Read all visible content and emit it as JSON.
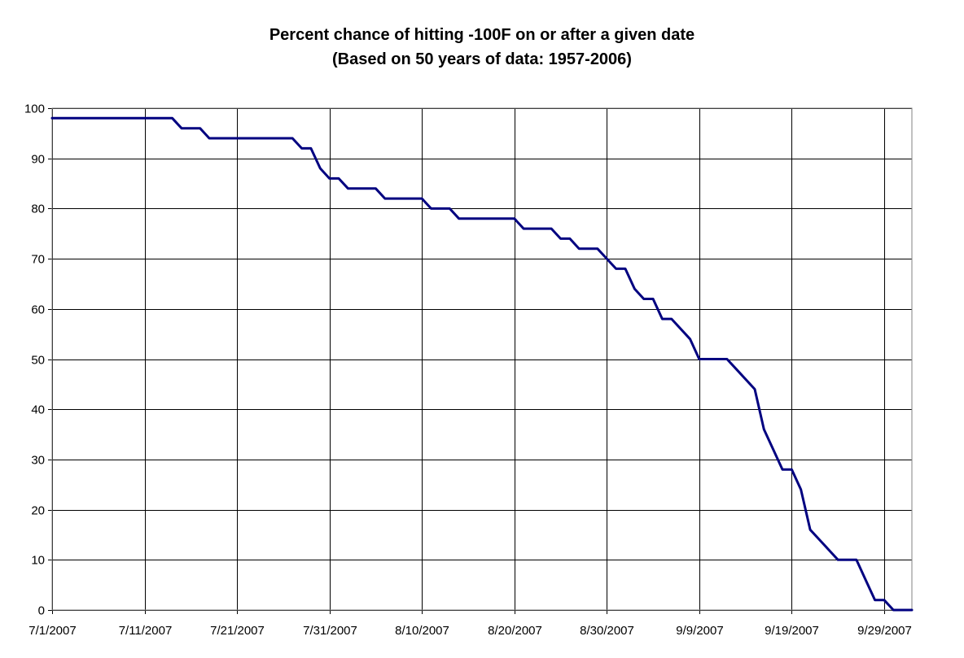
{
  "chart_data": {
    "type": "line",
    "title": "Percent chance of hitting -100F on or after a given date",
    "subtitle": "(Based on 50 years of data: 1957-2006)",
    "xlabel": "",
    "ylabel": "",
    "ylim": [
      0,
      100
    ],
    "yticks": [
      0,
      10,
      20,
      30,
      40,
      50,
      60,
      70,
      80,
      90,
      100
    ],
    "xlim": [
      "2007-07-01",
      "2007-10-02"
    ],
    "xticks": [
      {
        "date": "2007-07-01",
        "label": "7/1/2007"
      },
      {
        "date": "2007-07-11",
        "label": "7/11/2007"
      },
      {
        "date": "2007-07-21",
        "label": "7/21/2007"
      },
      {
        "date": "2007-07-31",
        "label": "7/31/2007"
      },
      {
        "date": "2007-08-10",
        "label": "8/10/2007"
      },
      {
        "date": "2007-08-20",
        "label": "8/20/2007"
      },
      {
        "date": "2007-08-30",
        "label": "8/30/2007"
      },
      {
        "date": "2007-09-09",
        "label": "9/9/2007"
      },
      {
        "date": "2007-09-19",
        "label": "9/19/2007"
      },
      {
        "date": "2007-09-29",
        "label": "9/29/2007"
      }
    ],
    "grid": true,
    "legend": "none",
    "line_color": "#000080",
    "series": [
      {
        "points": [
          [
            "2007-07-01",
            98
          ],
          [
            "2007-07-14",
            98
          ],
          [
            "2007-07-15",
            96
          ],
          [
            "2007-07-17",
            96
          ],
          [
            "2007-07-18",
            94
          ],
          [
            "2007-07-27",
            94
          ],
          [
            "2007-07-28",
            92
          ],
          [
            "2007-07-29",
            92
          ],
          [
            "2007-07-30",
            88
          ],
          [
            "2007-07-31",
            86
          ],
          [
            "2007-08-01",
            86
          ],
          [
            "2007-08-02",
            84
          ],
          [
            "2007-08-05",
            84
          ],
          [
            "2007-08-06",
            82
          ],
          [
            "2007-08-10",
            82
          ],
          [
            "2007-08-11",
            80
          ],
          [
            "2007-08-13",
            80
          ],
          [
            "2007-08-14",
            78
          ],
          [
            "2007-08-20",
            78
          ],
          [
            "2007-08-21",
            76
          ],
          [
            "2007-08-24",
            76
          ],
          [
            "2007-08-25",
            74
          ],
          [
            "2007-08-26",
            74
          ],
          [
            "2007-08-27",
            72
          ],
          [
            "2007-08-29",
            72
          ],
          [
            "2007-08-30",
            70
          ],
          [
            "2007-08-31",
            68
          ],
          [
            "2007-09-01",
            68
          ],
          [
            "2007-09-02",
            64
          ],
          [
            "2007-09-03",
            62
          ],
          [
            "2007-09-04",
            62
          ],
          [
            "2007-09-05",
            58
          ],
          [
            "2007-09-06",
            58
          ],
          [
            "2007-09-08",
            54
          ],
          [
            "2007-09-09",
            50
          ],
          [
            "2007-09-12",
            50
          ],
          [
            "2007-09-13",
            48
          ],
          [
            "2007-09-15",
            44
          ],
          [
            "2007-09-16",
            36
          ],
          [
            "2007-09-17",
            32
          ],
          [
            "2007-09-18",
            28
          ],
          [
            "2007-09-19",
            28
          ],
          [
            "2007-09-20",
            24
          ],
          [
            "2007-09-21",
            16
          ],
          [
            "2007-09-22",
            14
          ],
          [
            "2007-09-24",
            10
          ],
          [
            "2007-09-26",
            10
          ],
          [
            "2007-09-27",
            6
          ],
          [
            "2007-09-28",
            2
          ],
          [
            "2007-09-29",
            2
          ],
          [
            "2007-09-30",
            0
          ],
          [
            "2007-10-02",
            0
          ]
        ]
      }
    ]
  }
}
